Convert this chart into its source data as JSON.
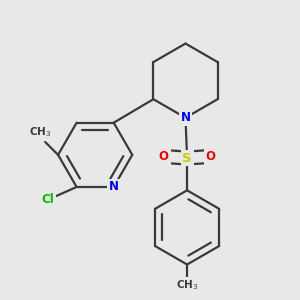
{
  "bg_color": "#e8e8e8",
  "bond_color": "#3a3a3a",
  "bond_width": 1.6,
  "atom_colors": {
    "N": "#0000ee",
    "Cl": "#00bb00",
    "O": "#ee0000",
    "S": "#cccc00",
    "C": "#3a3a3a"
  },
  "font_size": 8.5,
  "fig_width": 3.0,
  "fig_height": 3.0,
  "dpi": 100
}
